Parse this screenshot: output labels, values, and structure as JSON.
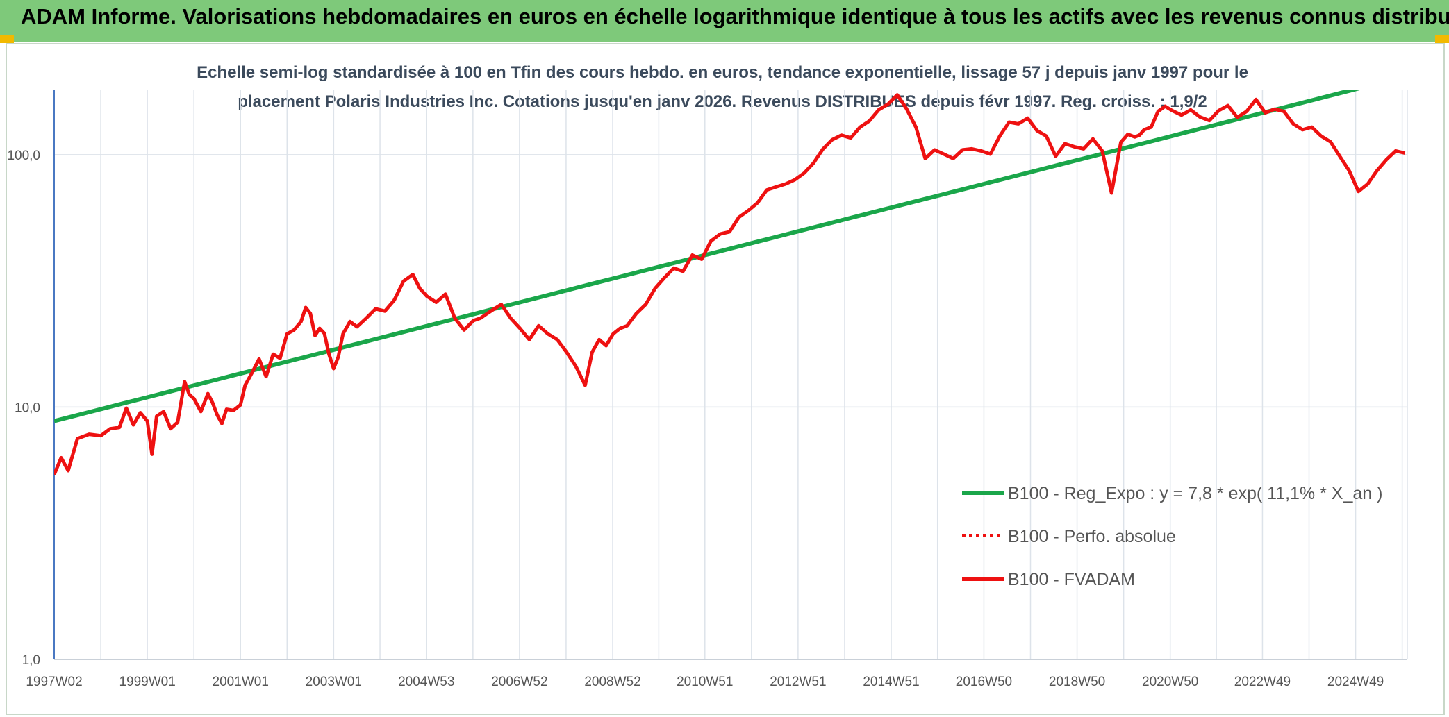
{
  "banner": {
    "title": "ADAM Informe. Valorisations hebdomadaires en euros en échelle logarithmique identique à tous les actifs avec les revenus connus distribués"
  },
  "colors": {
    "banner_bg": "#7ec97a",
    "trend": "#1aa64a",
    "series": "#ee1111",
    "subtitle": "#3b4a5c",
    "grid": "#dde3ea",
    "corner": "#f2b900"
  },
  "chart_data": {
    "type": "line",
    "title_line1": "Echelle semi-log standardisée à 100 en Tfin des cours hebdo. en euros, tendance exponentielle, lissage 57 j depuis janv 1997 pour le",
    "title_line2": "placement Polaris Industries Inc. Cotations jusqu'en janv 2026. Revenus DISTRIBUES depuis févr 1997. Reg. croiss. : 1,9/2",
    "y_scale": "log",
    "ylim": [
      1,
      180
    ],
    "y_ticks": [
      1,
      10,
      100
    ],
    "y_tick_labels": [
      "1,0",
      "10,0",
      "100,0"
    ],
    "xlim": [
      1997.0,
      2026.05
    ],
    "x_ticks": [
      1997.0,
      1999.0,
      2001.0,
      2003.0,
      2004.99,
      2006.99,
      2008.99,
      2010.97,
      2012.97,
      2014.97,
      2016.96,
      2018.96,
      2020.96,
      2022.94,
      2024.94
    ],
    "x_tick_labels": [
      "1997W02",
      "1999W01",
      "2001W01",
      "2003W01",
      "2004W53",
      "2006W52",
      "2008W52",
      "2010W51",
      "2012W51",
      "2014W51",
      "2016W50",
      "2018W50",
      "2020W50",
      "2022W49",
      "2024W49"
    ],
    "grid": true,
    "legend_position": "bottom-right",
    "legend": [
      {
        "label": "B100 - Reg_Expo : y = 7,8 * exp( 11,1% *  X_an )",
        "style": "solid",
        "color": "#1aa64a"
      },
      {
        "label": "B100 - Perfo. absolue",
        "style": "dotted",
        "color": "#ee1111"
      },
      {
        "label": "B100 - FVADAM",
        "style": "solid",
        "color": "#ee1111"
      }
    ],
    "series": [
      {
        "name": "B100 - Reg_Expo : y = 7,8 * exp( 11,1% *  X_an )",
        "kind": "exponential",
        "x": [
          1997.0,
          2026.05
        ],
        "values": [
          8.8,
          205
        ]
      },
      {
        "name": "B100 - FVADAM",
        "kind": "line",
        "x": [
          1997.0,
          1997.15,
          1997.3,
          1997.5,
          1997.75,
          1998.0,
          1998.2,
          1998.4,
          1998.55,
          1998.7,
          1998.85,
          1999.0,
          1999.1,
          1999.2,
          1999.35,
          1999.5,
          1999.65,
          1999.8,
          1999.9,
          2000.0,
          2000.15,
          2000.3,
          2000.4,
          2000.5,
          2000.6,
          2000.7,
          2000.85,
          2001.0,
          2001.1,
          2001.25,
          2001.4,
          2001.55,
          2001.7,
          2001.85,
          2002.0,
          2002.15,
          2002.3,
          2002.4,
          2002.5,
          2002.6,
          2002.7,
          2002.8,
          2002.9,
          2003.0,
          2003.1,
          2003.2,
          2003.35,
          2003.5,
          2003.7,
          2003.9,
          2004.1,
          2004.3,
          2004.5,
          2004.7,
          2004.85,
          2005.0,
          2005.2,
          2005.4,
          2005.6,
          2005.8,
          2006.0,
          2006.15,
          2006.3,
          2006.45,
          2006.6,
          2006.8,
          2007.0,
          2007.2,
          2007.4,
          2007.6,
          2007.8,
          2008.0,
          2008.2,
          2008.4,
          2008.55,
          2008.7,
          2008.85,
          2009.0,
          2009.15,
          2009.3,
          2009.5,
          2009.7,
          2009.9,
          2010.1,
          2010.3,
          2010.5,
          2010.7,
          2010.9,
          2011.1,
          2011.3,
          2011.5,
          2011.7,
          2011.9,
          2012.1,
          2012.3,
          2012.5,
          2012.7,
          2012.9,
          2013.1,
          2013.3,
          2013.5,
          2013.7,
          2013.9,
          2014.1,
          2014.3,
          2014.5,
          2014.7,
          2014.9,
          2015.1,
          2015.3,
          2015.5,
          2015.7,
          2015.9,
          2016.1,
          2016.3,
          2016.5,
          2016.7,
          2016.9,
          2017.1,
          2017.3,
          2017.5,
          2017.7,
          2017.9,
          2018.1,
          2018.3,
          2018.5,
          2018.7,
          2018.9,
          2019.1,
          2019.3,
          2019.5,
          2019.7,
          2019.9,
          2020.05,
          2020.2,
          2020.3,
          2020.4,
          2020.55,
          2020.7,
          2020.85,
          2021.0,
          2021.2,
          2021.4,
          2021.6,
          2021.8,
          2022.0,
          2022.2,
          2022.4,
          2022.6,
          2022.8,
          2023.0,
          2023.2,
          2023.4,
          2023.6,
          2023.8,
          2024.0,
          2024.2,
          2024.4,
          2024.6,
          2024.8,
          2025.0,
          2025.2,
          2025.4,
          2025.6,
          2025.8,
          2026.0
        ],
        "values": [
          5.4,
          6.3,
          5.6,
          7.5,
          7.8,
          7.7,
          8.2,
          8.3,
          9.9,
          8.5,
          9.5,
          8.8,
          6.5,
          9.2,
          9.6,
          8.2,
          8.7,
          12.6,
          11.2,
          10.8,
          9.6,
          11.3,
          10.4,
          9.3,
          8.6,
          9.8,
          9.7,
          10.2,
          12.2,
          13.7,
          15.5,
          13.2,
          16.2,
          15.6,
          19.5,
          20.2,
          21.8,
          24.8,
          23.5,
          19.2,
          20.5,
          19.6,
          16.2,
          14.2,
          15.8,
          19.5,
          21.8,
          20.8,
          22.5,
          24.5,
          24.0,
          26.5,
          31.5,
          33.5,
          29.5,
          27.5,
          26.0,
          28.0,
          22.5,
          20.2,
          22.0,
          22.5,
          23.5,
          24.5,
          25.5,
          22.5,
          20.5,
          18.5,
          21.0,
          19.5,
          18.5,
          16.5,
          14.5,
          12.2,
          16.5,
          18.5,
          17.5,
          19.5,
          20.5,
          21.0,
          23.5,
          25.5,
          29.5,
          32.5,
          35.5,
          34.5,
          40.0,
          38.5,
          45.5,
          48.5,
          49.5,
          56.5,
          60.0,
          64.5,
          72.5,
          74.5,
          76.5,
          79.5,
          84.5,
          92.5,
          105.0,
          114.5,
          119.5,
          116.5,
          128.5,
          136.0,
          150.5,
          158.5,
          172.5,
          152.0,
          128.5,
          96.5,
          104.5,
          100.5,
          96.5,
          104.5,
          105.5,
          103.5,
          100.5,
          118.5,
          134.5,
          132.5,
          139.5,
          124.5,
          118.5,
          98.5,
          110.5,
          107.5,
          105.5,
          115.5,
          103.5,
          70.5,
          112.0,
          120.5,
          117.5,
          119.5,
          125.5,
          128.5,
          148.5,
          155.5,
          149.5,
          143.5,
          150.5,
          141.0,
          136.5,
          149.5,
          156.5,
          140.5,
          148.5,
          165.5,
          146.5,
          151.5,
          148.5,
          132.5,
          125.5,
          128.5,
          118.5,
          112.5,
          98.5,
          86.5,
          71.5,
          76.5,
          86.5,
          95.5,
          103.5,
          101.5
        ]
      }
    ]
  }
}
